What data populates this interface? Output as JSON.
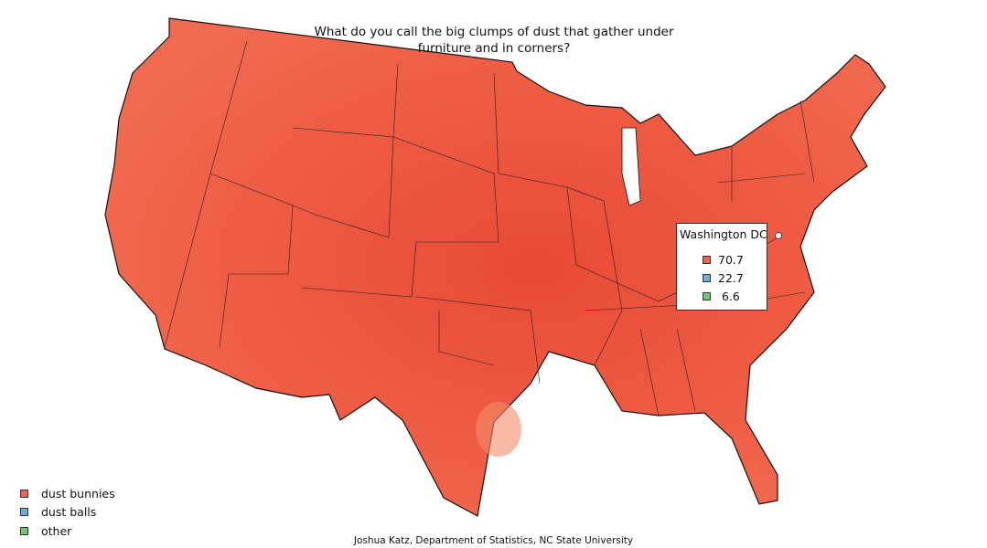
{
  "title_line1": "What do you call the big clumps of dust that gather under",
  "title_line2": "furniture and in corners?",
  "colors": {
    "dust_bunnies": "#f0644b",
    "dust_balls": "#6baed6",
    "other": "#74c476",
    "map_fill": "#ee5d45"
  },
  "legend": [
    {
      "label": "dust bunnies",
      "color": "#f0644b"
    },
    {
      "label": "dust balls",
      "color": "#6baed6"
    },
    {
      "label": "other",
      "color": "#74c476"
    }
  ],
  "tooltip": {
    "location": "Washington DC",
    "values": [
      {
        "answer": "dust bunnies",
        "value": "70.7",
        "color": "#f0644b"
      },
      {
        "answer": "dust balls",
        "value": "22.7",
        "color": "#6baed6"
      },
      {
        "answer": "other",
        "value": "6.6",
        "color": "#74c476"
      }
    ]
  },
  "credit": "Joshua Katz, Department of Statistics, NC State University"
}
